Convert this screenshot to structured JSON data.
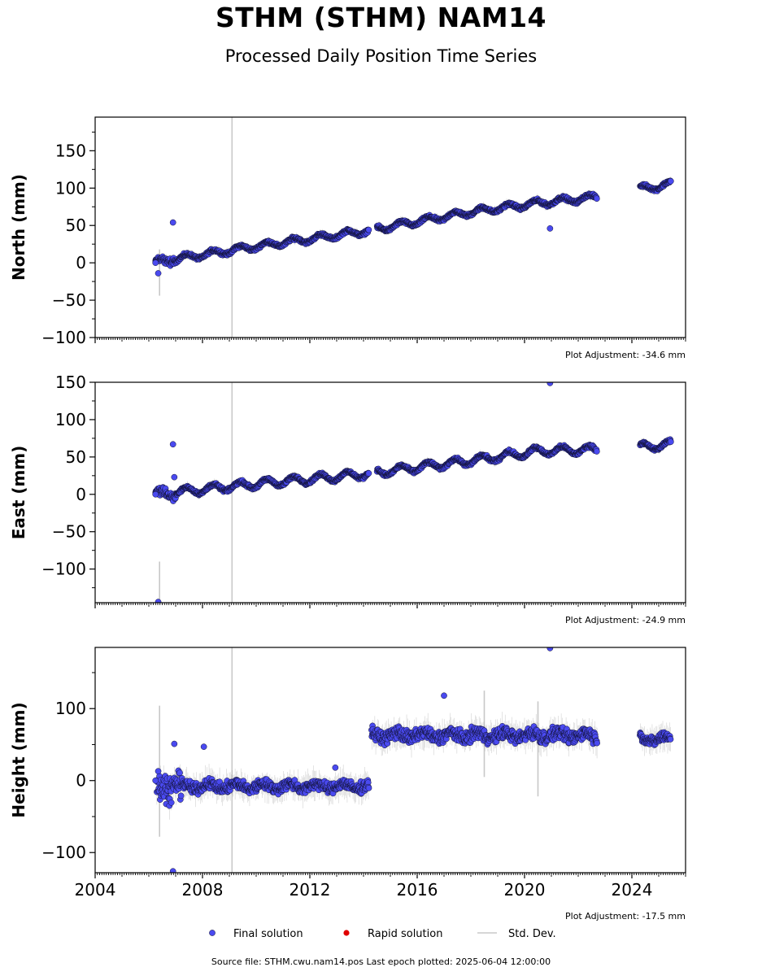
{
  "page": {
    "title": "STHM (STHM) NAM14",
    "subtitle": "Processed Daily Position Time Series",
    "source": "Source file: STHM.cwu.nam14.pos  Last epoch plotted: 2025-06-04 12:00:00"
  },
  "colors": {
    "final": "#4a4af0",
    "rapid": "#e00000",
    "stddev": "#c8c8c8",
    "marker_edge": "#111133"
  },
  "legend": [
    {
      "label": "Final solution",
      "kind": "dot",
      "color": "#4a4af0"
    },
    {
      "label": "Rapid solution",
      "kind": "dot",
      "color": "#e00000"
    },
    {
      "label": "Std. Dev.",
      "kind": "line",
      "color": "#c8c8c8"
    }
  ],
  "chart_data": [
    {
      "type": "scatter",
      "ylabel": "North (mm)",
      "xlim": [
        2004.0,
        2026.0
      ],
      "ylim": [
        -100,
        195
      ],
      "yticks": [
        -100,
        -50,
        0,
        50,
        100,
        150
      ],
      "ytick_labels": [
        "−100",
        "−50",
        "0",
        "50",
        "100",
        "150"
      ],
      "adjustment": "Plot Adjustment: -34.6 mm",
      "gaps": [
        [
          2014.2,
          2014.5
        ],
        [
          2022.7,
          2024.3
        ]
      ],
      "trend": [
        [
          2006.25,
          0
        ],
        [
          2007.0,
          5
        ],
        [
          2010,
          22
        ],
        [
          2014,
          42
        ],
        [
          2018,
          68
        ],
        [
          2020.5,
          80
        ],
        [
          2022.7,
          88
        ],
        [
          2024.3,
          99
        ],
        [
          2025.45,
          105
        ]
      ],
      "seasonal_amplitude": 4,
      "outliers": [
        {
          "x": 2006.25,
          "y": 0
        },
        {
          "x": 2006.35,
          "y": -14
        },
        {
          "x": 2006.9,
          "y": 54
        },
        {
          "x": 2020.95,
          "y": 46
        }
      ],
      "stddev_lines": [
        {
          "x": 2006.4,
          "y1": -44,
          "y2": 18
        },
        {
          "x": 2009.1,
          "y1": -100,
          "y2": 195
        }
      ]
    },
    {
      "type": "scatter",
      "ylabel": "East (mm)",
      "xlim": [
        2004.0,
        2026.0
      ],
      "ylim": [
        -145,
        150
      ],
      "yticks": [
        -100,
        -50,
        0,
        50,
        100,
        150
      ],
      "ytick_labels": [
        "−100",
        "−50",
        "0",
        "50",
        "100",
        "150"
      ],
      "adjustment": "Plot Adjustment: -24.9 mm",
      "gaps": [
        [
          2014.2,
          2014.5
        ],
        [
          2022.7,
          2024.3
        ]
      ],
      "trend": [
        [
          2006.25,
          0
        ],
        [
          2007.0,
          3
        ],
        [
          2010,
          14
        ],
        [
          2014,
          27
        ],
        [
          2018,
          45
        ],
        [
          2020.5,
          58
        ],
        [
          2022.7,
          60
        ],
        [
          2024.3,
          63
        ],
        [
          2025.45,
          67
        ]
      ],
      "seasonal_amplitude": 5,
      "outliers": [
        {
          "x": 2006.25,
          "y": 0
        },
        {
          "x": 2006.35,
          "y": -144
        },
        {
          "x": 2006.9,
          "y": 67
        },
        {
          "x": 2006.95,
          "y": 23
        },
        {
          "x": 2020.95,
          "y": 149
        }
      ],
      "stddev_lines": [
        {
          "x": 2006.4,
          "y1": -145,
          "y2": -90
        },
        {
          "x": 2009.1,
          "y1": -145,
          "y2": 150
        }
      ]
    },
    {
      "type": "scatter",
      "ylabel": "Height (mm)",
      "xlim": [
        2004.0,
        2026.0
      ],
      "ylim": [
        -128,
        185
      ],
      "yticks": [
        -100,
        0,
        100
      ],
      "ytick_labels": [
        "−100",
        "0",
        "100"
      ],
      "xticks": [
        2004,
        2008,
        2012,
        2016,
        2020,
        2024
      ],
      "xtick_labels": [
        "2004",
        "2008",
        "2012",
        "2016",
        "2020",
        "2024"
      ],
      "adjustment": "Plot Adjustment: -17.5 mm",
      "gaps": [
        [
          2022.7,
          2024.3
        ]
      ],
      "segments": [
        {
          "x0": 2006.3,
          "x1": 2014.2,
          "mean": -8,
          "spread": 9
        },
        {
          "x0": 2014.3,
          "x1": 2022.7,
          "mean": 63,
          "spread": 11
        },
        {
          "x0": 2024.3,
          "x1": 2025.45,
          "mean": 58,
          "spread": 8
        }
      ],
      "outliers": [
        {
          "x": 2006.25,
          "y": 0
        },
        {
          "x": 2006.35,
          "y": 13
        },
        {
          "x": 2006.9,
          "y": -126
        },
        {
          "x": 2006.95,
          "y": 51
        },
        {
          "x": 2008.05,
          "y": 47
        },
        {
          "x": 2012.95,
          "y": 18
        },
        {
          "x": 2017.0,
          "y": 118
        },
        {
          "x": 2020.95,
          "y": 184
        }
      ],
      "stddev_lines": [
        {
          "x": 2006.4,
          "y1": -78,
          "y2": 104
        },
        {
          "x": 2009.1,
          "y1": -128,
          "y2": 185
        },
        {
          "x": 2018.5,
          "y1": 5,
          "y2": 125
        },
        {
          "x": 2020.5,
          "y1": -22,
          "y2": 110
        }
      ]
    }
  ]
}
